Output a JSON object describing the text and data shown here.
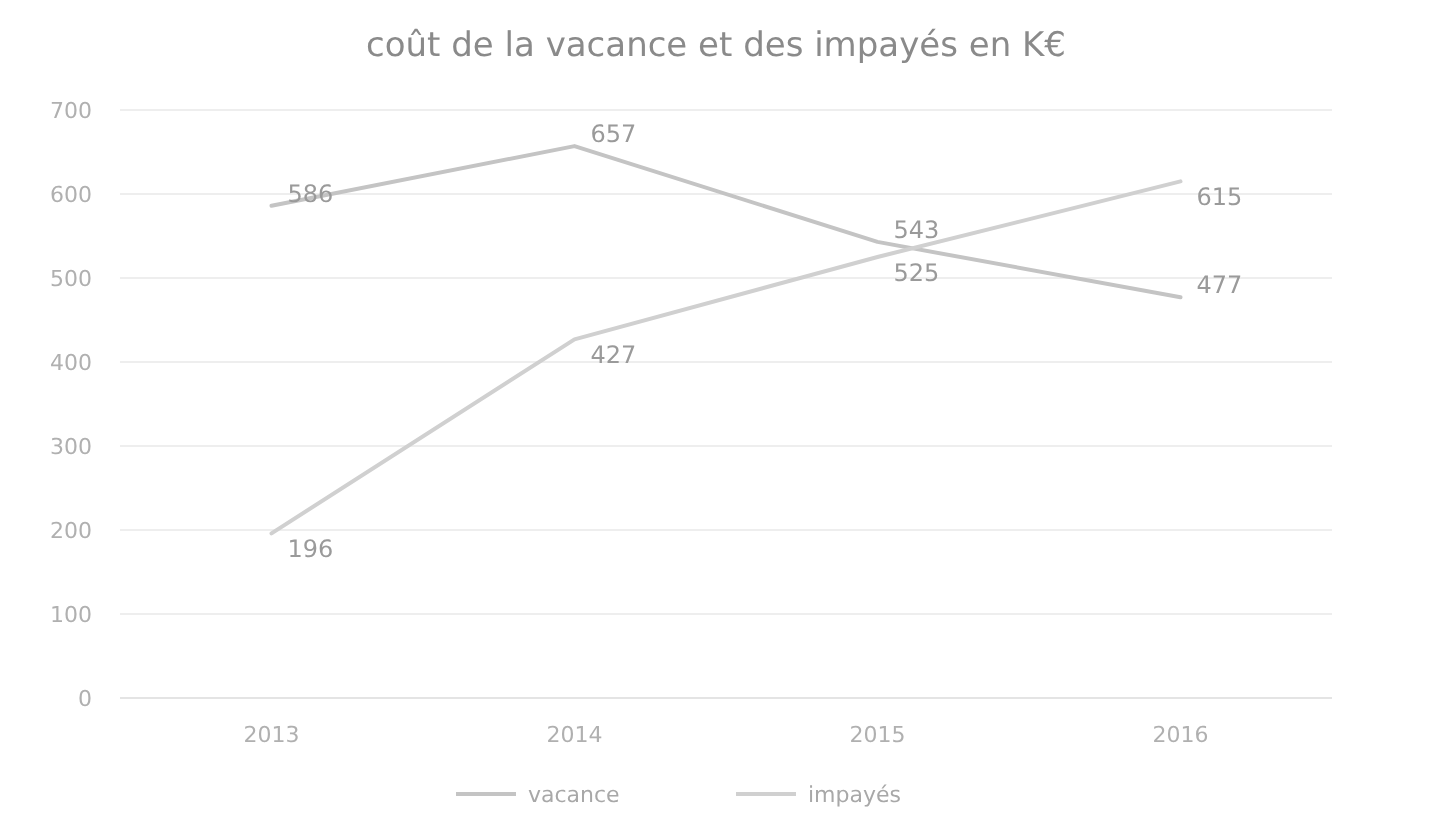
{
  "chart_data": {
    "type": "line",
    "title": "coût de la vacance et des impayés en K€",
    "categories": [
      "2013",
      "2014",
      "2015",
      "2016"
    ],
    "series": [
      {
        "name": "vacance",
        "color": "#c4c4c4",
        "values": [
          586,
          657,
          543,
          477
        ]
      },
      {
        "name": "impayés",
        "color": "#d0d0d0",
        "values": [
          196,
          427,
          525,
          615
        ]
      }
    ],
    "ylim": [
      0,
      700
    ],
    "yticks": [
      0,
      100,
      200,
      300,
      400,
      500,
      600,
      700
    ],
    "grid": "y",
    "legend": "bottom",
    "data_labels": true,
    "marker": "none",
    "line_style": "solid"
  }
}
